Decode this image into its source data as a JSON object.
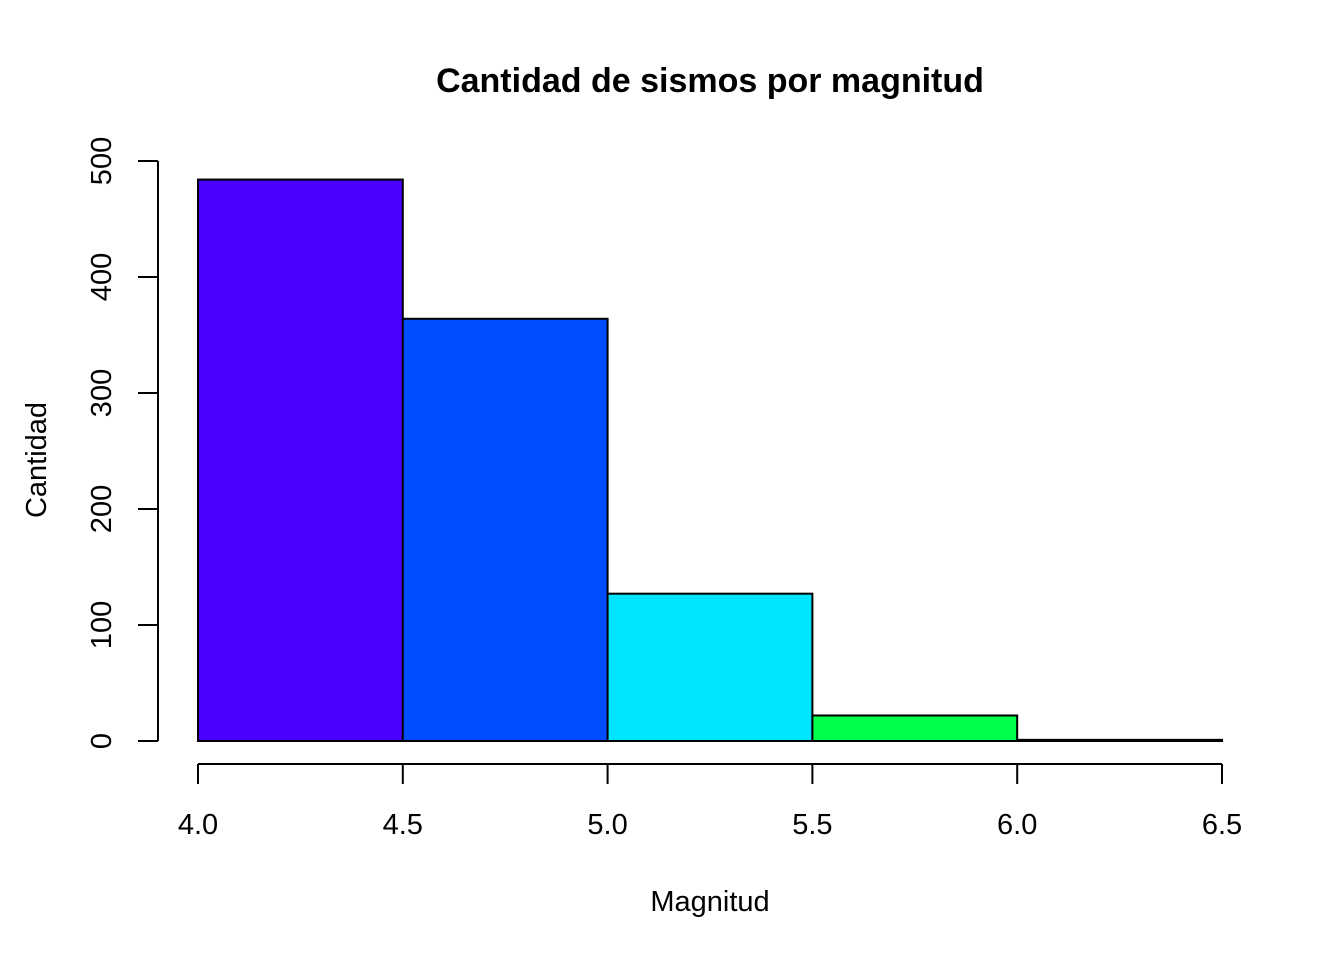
{
  "chart_data": {
    "type": "bar",
    "title": "Cantidad de sismos por magnitud",
    "xlabel": "Magnitud",
    "ylabel": "Cantidad",
    "bins": [
      {
        "start": 4.0,
        "end": 4.5,
        "value": 484,
        "color": "#4B00FF"
      },
      {
        "start": 4.5,
        "end": 5.0,
        "value": 364,
        "color": "#004CFF"
      },
      {
        "start": 5.0,
        "end": 5.5,
        "value": 127,
        "color": "#00E5FF"
      },
      {
        "start": 5.5,
        "end": 6.0,
        "value": 22,
        "color": "#00FF4D"
      },
      {
        "start": 6.0,
        "end": 6.5,
        "value": 1,
        "color": "#4DFF00"
      }
    ],
    "x_ticks": [
      "4.0",
      "4.5",
      "5.0",
      "5.5",
      "6.0",
      "6.5"
    ],
    "y_ticks": [
      "0",
      "100",
      "200",
      "300",
      "400",
      "500"
    ],
    "xlim": [
      4.0,
      6.5
    ],
    "ylim": [
      0,
      500
    ],
    "grid": false,
    "legend": "none"
  }
}
